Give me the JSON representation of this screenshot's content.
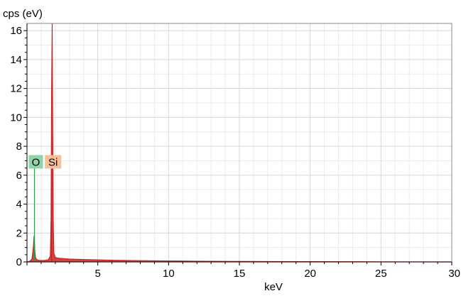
{
  "chart_data": {
    "type": "area",
    "title": "",
    "xlabel": "keV",
    "ylabel": "cps (eV)",
    "xlim": [
      0,
      30
    ],
    "ylim": [
      0,
      16.5
    ],
    "x_ticks": [
      5,
      10,
      15,
      20,
      25,
      30
    ],
    "y_ticks": [
      0,
      2,
      4,
      6,
      8,
      10,
      12,
      14,
      16
    ],
    "grid": true,
    "series": [
      {
        "color": "#cc2222",
        "x": [
          0.0,
          0.2,
          0.35,
          0.45,
          0.5,
          0.52,
          0.55,
          0.6,
          0.7,
          0.9,
          1.2,
          1.5,
          1.65,
          1.7,
          1.74,
          1.78,
          1.8,
          1.85,
          1.9,
          2.0,
          2.3,
          3.0,
          4.0,
          5.0,
          6.0,
          8.0,
          10.0,
          12.0,
          14.0,
          16.0,
          20.0,
          25.0,
          30.0
        ],
        "values": [
          0.0,
          0.05,
          0.2,
          1.0,
          1.8,
          1.6,
          0.8,
          0.3,
          0.15,
          0.1,
          0.1,
          0.15,
          0.4,
          3.0,
          12.0,
          16.5,
          12.0,
          3.0,
          0.6,
          0.3,
          0.25,
          0.2,
          0.17,
          0.14,
          0.12,
          0.09,
          0.07,
          0.05,
          0.04,
          0.03,
          0.02,
          0.01,
          0.0
        ]
      }
    ],
    "element_markers": [
      {
        "label": "O",
        "energy": 0.525,
        "height": 6.9,
        "color": "#27a04a",
        "box_color": "#8fd3a8"
      },
      {
        "label": "Si",
        "energy": 1.74,
        "height": 6.9,
        "color": "#cc2222",
        "box_color": "#f6c199"
      }
    ]
  }
}
